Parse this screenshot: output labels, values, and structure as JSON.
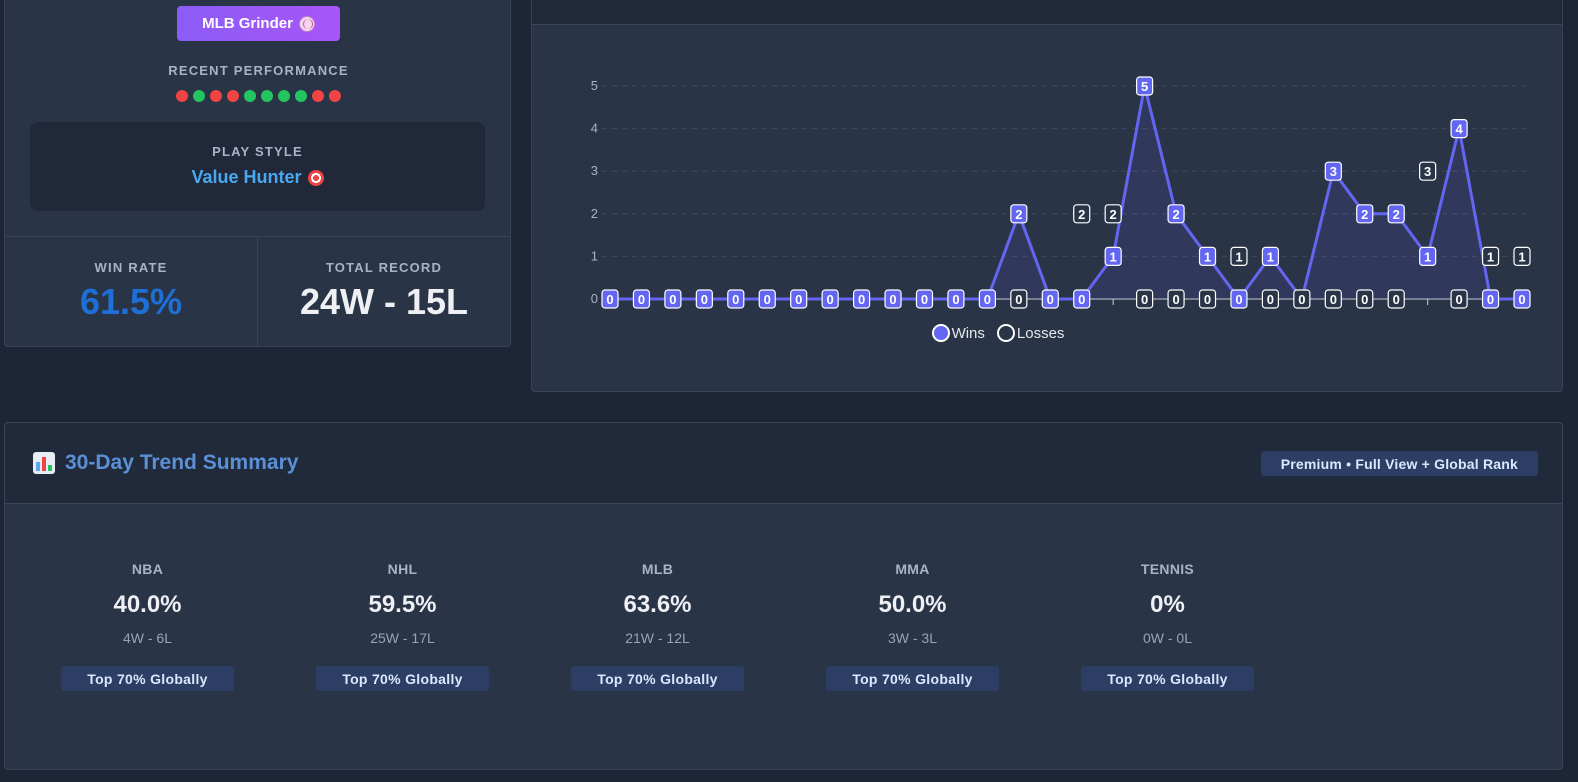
{
  "profile": {
    "badge_label": "MLB Grinder",
    "recent_title": "RECENT PERFORMANCE",
    "recent_results": [
      "L",
      "W",
      "L",
      "L",
      "W",
      "W",
      "W",
      "W",
      "L",
      "L"
    ],
    "colors": {
      "win": "#22c55e",
      "loss": "#ef4444"
    },
    "play_style_title": "PLAY STYLE",
    "play_style_value": "Value Hunter",
    "win_rate_label": "WIN RATE",
    "win_rate_value": "61.5%",
    "record_label": "TOTAL RECORD",
    "record_value": "24W - 15L"
  },
  "chart_data": {
    "type": "line",
    "yticks": [
      "0",
      "1",
      "2",
      "3",
      "4",
      "5"
    ],
    "ylim": [
      0,
      5.5
    ],
    "grid": true,
    "legend_placement": "bottom",
    "series": [
      {
        "name": "Wins",
        "color": "#6366f1",
        "values": [
          0,
          0,
          0,
          0,
          0,
          0,
          0,
          0,
          0,
          0,
          0,
          0,
          0,
          2,
          0,
          0,
          1,
          5,
          2,
          1,
          0,
          1,
          0,
          3,
          2,
          2,
          1,
          4,
          0,
          0
        ]
      },
      {
        "name": "Losses",
        "color": "#ffffff",
        "values": [
          0,
          0,
          0,
          0,
          0,
          0,
          0,
          0,
          0,
          0,
          0,
          0,
          0,
          0,
          0,
          2,
          2,
          0,
          0,
          0,
          1,
          0,
          0,
          0,
          0,
          0,
          3,
          0,
          1,
          1
        ]
      }
    ]
  },
  "trend": {
    "title": "30-Day Trend Summary",
    "premium_label": "Premium • Full View + Global Rank",
    "sports": [
      {
        "name": "NBA",
        "pct": "40.0%",
        "record": "4W - 6L",
        "rank": "Top 70% Globally"
      },
      {
        "name": "NHL",
        "pct": "59.5%",
        "record": "25W - 17L",
        "rank": "Top 70% Globally"
      },
      {
        "name": "MLB",
        "pct": "63.6%",
        "record": "21W - 12L",
        "rank": "Top 70% Globally"
      },
      {
        "name": "MMA",
        "pct": "50.0%",
        "record": "3W - 3L",
        "rank": "Top 70% Globally"
      },
      {
        "name": "TENNIS",
        "pct": "0%",
        "record": "0W - 0L",
        "rank": "Top 70% Globally"
      }
    ]
  }
}
